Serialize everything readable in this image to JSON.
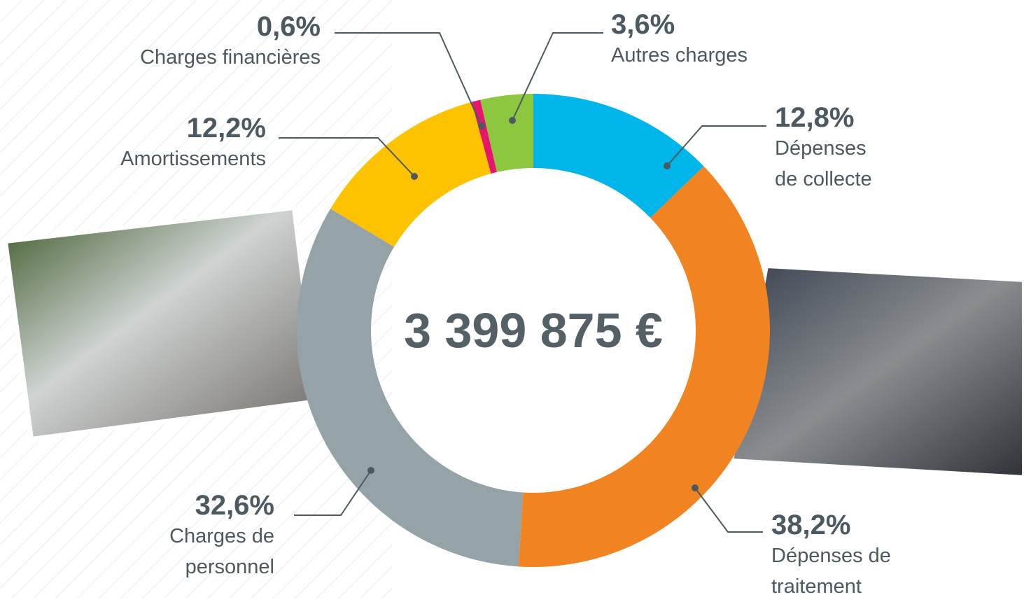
{
  "chart_data": {
    "type": "donut",
    "total": "3 399 875 €",
    "categories": [
      "Dépenses\nde collecte",
      "Dépenses de\ntraitement",
      "Charges de\npersonnel",
      "Amortissements",
      "Charges financières",
      "Autres charges"
    ],
    "values": [
      12.8,
      38.2,
      32.6,
      12.2,
      0.6,
      3.6
    ],
    "value_labels": [
      "12,8%",
      "38,2%",
      "32,6%",
      "12,2%",
      "0,6%",
      "3,6%"
    ],
    "colors": [
      "#00b5e9",
      "#f28321",
      "#95a3a8",
      "#fec300",
      "#e6166e",
      "#8dc63f"
    ]
  }
}
